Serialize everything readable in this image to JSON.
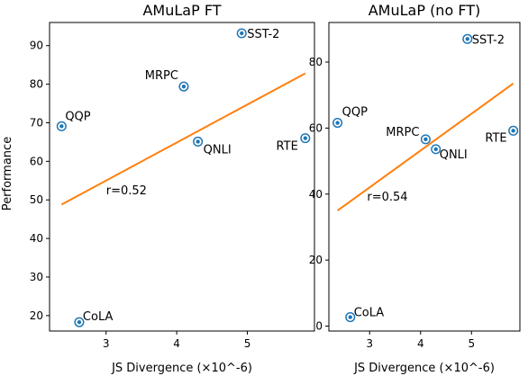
{
  "chart_data": [
    {
      "type": "scatter",
      "title": "AMuLaP FT",
      "xlabel": "JS Divergence (×10^-6)",
      "ylabel": "Performance",
      "xlim": [
        2.2,
        5.95
      ],
      "ylim": [
        16,
        96
      ],
      "xticks": [
        3,
        4,
        5
      ],
      "yticks": [
        20,
        30,
        40,
        50,
        60,
        70,
        80,
        90
      ],
      "points": [
        {
          "label": "SST-2",
          "x": 4.92,
          "y": 93.2
        },
        {
          "label": "MRPC",
          "x": 4.1,
          "y": 79.4
        },
        {
          "label": "QQP",
          "x": 2.37,
          "y": 69.1
        },
        {
          "label": "QNLI",
          "x": 4.3,
          "y": 65.1
        },
        {
          "label": "RTE",
          "x": 5.82,
          "y": 66.0
        },
        {
          "label": "CoLA",
          "x": 2.62,
          "y": 18.3
        }
      ],
      "fit_line": {
        "x": [
          2.37,
          5.82
        ],
        "y": [
          48.8,
          82.8
        ]
      },
      "annotation": "r=0.52",
      "annotation_position": {
        "x": 3.0,
        "y": 51.5
      }
    },
    {
      "type": "scatter",
      "title": "AMuLaP (no FT)",
      "xlabel": "JS Divergence (×10^-6)",
      "ylabel": "",
      "xlim": [
        2.2,
        5.95
      ],
      "ylim": [
        -1.5,
        92
      ],
      "xticks": [
        3,
        4,
        5
      ],
      "yticks": [
        0,
        20,
        40,
        60,
        80
      ],
      "points": [
        {
          "label": "SST-2",
          "x": 4.92,
          "y": 87.0
        },
        {
          "label": "QQP",
          "x": 2.37,
          "y": 61.6
        },
        {
          "label": "MRPC",
          "x": 4.1,
          "y": 56.6
        },
        {
          "label": "QNLI",
          "x": 4.3,
          "y": 53.6
        },
        {
          "label": "RTE",
          "x": 5.82,
          "y": 59.2
        },
        {
          "label": "CoLA",
          "x": 2.62,
          "y": 2.7
        }
      ],
      "fit_line": {
        "x": [
          2.37,
          5.82
        ],
        "y": [
          35.0,
          73.5
        ]
      },
      "annotation": "r=0.54",
      "annotation_position": {
        "x": 2.95,
        "y": 38.0
      }
    }
  ]
}
